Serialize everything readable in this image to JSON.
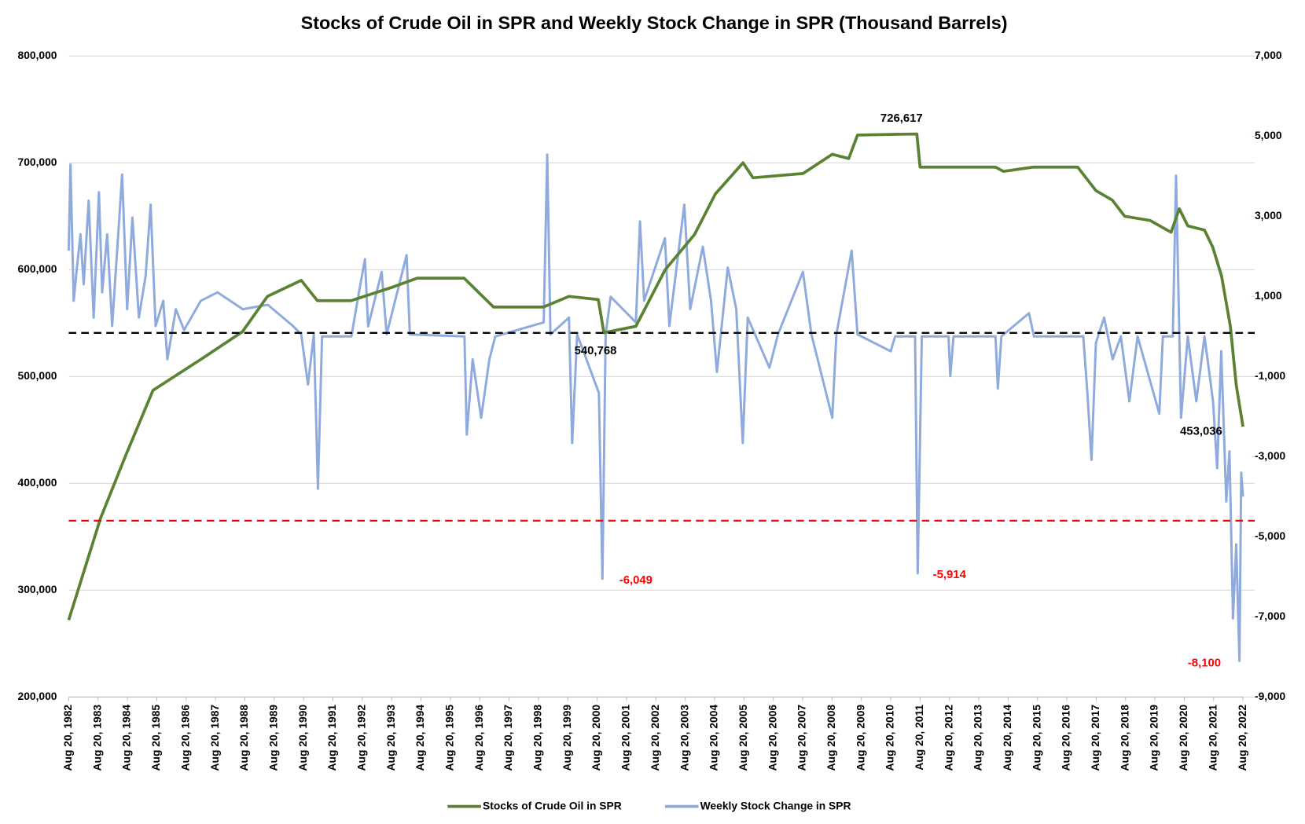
{
  "chart_data": {
    "type": "line",
    "title": "Stocks of Crude Oil in SPR and Weekly Stock Change in SPR (Thousand Barrels)",
    "xlim": [
      1982.63,
      2022.63
    ],
    "ylim": [
      200000,
      800000
    ],
    "y2lim": [
      -9000,
      7000
    ],
    "grid": true,
    "legend": "bottom",
    "yticks": [
      {
        "value": 200000,
        "label": "200,000"
      },
      {
        "value": 300000,
        "label": "300,000"
      },
      {
        "value": 400000,
        "label": "400,000"
      },
      {
        "value": 500000,
        "label": "500,000"
      },
      {
        "value": 600000,
        "label": "600,000"
      },
      {
        "value": 700000,
        "label": "700,000"
      },
      {
        "value": 800000,
        "label": "800,000"
      }
    ],
    "y2ticks": [
      {
        "value": -9000,
        "label": "-9,000"
      },
      {
        "value": -7000,
        "label": "-7,000"
      },
      {
        "value": -5000,
        "label": "-5,000"
      },
      {
        "value": -3000,
        "label": "-3,000"
      },
      {
        "value": -1000,
        "label": "-1,000"
      },
      {
        "value": 1000,
        "label": "1,000"
      },
      {
        "value": 3000,
        "label": "3,000"
      },
      {
        "value": 5000,
        "label": "5,000"
      },
      {
        "value": 7000,
        "label": "7,000"
      }
    ],
    "xticks": [
      {
        "value": 1982.63,
        "label": "Aug 20, 1982"
      },
      {
        "value": 1983.63,
        "label": "Aug 20, 1983"
      },
      {
        "value": 1984.63,
        "label": "Aug 20, 1984"
      },
      {
        "value": 1985.63,
        "label": "Aug 20, 1985"
      },
      {
        "value": 1986.63,
        "label": "Aug 20, 1986"
      },
      {
        "value": 1987.63,
        "label": "Aug 20, 1987"
      },
      {
        "value": 1988.63,
        "label": "Aug 20, 1988"
      },
      {
        "value": 1989.63,
        "label": "Aug 20, 1989"
      },
      {
        "value": 1990.63,
        "label": "Aug 20, 1990"
      },
      {
        "value": 1991.63,
        "label": "Aug 20, 1991"
      },
      {
        "value": 1992.63,
        "label": "Aug 20, 1992"
      },
      {
        "value": 1993.63,
        "label": "Aug 20, 1993"
      },
      {
        "value": 1994.63,
        "label": "Aug 20, 1994"
      },
      {
        "value": 1995.63,
        "label": "Aug 20, 1995"
      },
      {
        "value": 1996.63,
        "label": "Aug 20, 1996"
      },
      {
        "value": 1997.63,
        "label": "Aug 20, 1997"
      },
      {
        "value": 1998.63,
        "label": "Aug 20, 1998"
      },
      {
        "value": 1999.63,
        "label": "Aug 20, 1999"
      },
      {
        "value": 2000.63,
        "label": "Aug 20, 2000"
      },
      {
        "value": 2001.63,
        "label": "Aug 20, 2001"
      },
      {
        "value": 2002.63,
        "label": "Aug 20, 2002"
      },
      {
        "value": 2003.63,
        "label": "Aug 20, 2003"
      },
      {
        "value": 2004.63,
        "label": "Aug 20, 2004"
      },
      {
        "value": 2005.63,
        "label": "Aug 20, 2005"
      },
      {
        "value": 2006.63,
        "label": "Aug 20, 2006"
      },
      {
        "value": 2007.63,
        "label": "Aug 20, 2007"
      },
      {
        "value": 2008.63,
        "label": "Aug 20, 2008"
      },
      {
        "value": 2009.63,
        "label": "Aug 20, 2009"
      },
      {
        "value": 2010.63,
        "label": "Aug 20, 2010"
      },
      {
        "value": 2011.63,
        "label": "Aug 20, 2011"
      },
      {
        "value": 2012.63,
        "label": "Aug 20, 2012"
      },
      {
        "value": 2013.63,
        "label": "Aug 20, 2013"
      },
      {
        "value": 2014.63,
        "label": "Aug 20, 2014"
      },
      {
        "value": 2015.63,
        "label": "Aug 20, 2015"
      },
      {
        "value": 2016.63,
        "label": "Aug 20, 2016"
      },
      {
        "value": 2017.63,
        "label": "Aug 20, 2017"
      },
      {
        "value": 2018.63,
        "label": "Aug 20, 2018"
      },
      {
        "value": 2019.63,
        "label": "Aug 20, 2019"
      },
      {
        "value": 2020.63,
        "label": "Aug 20, 2020"
      },
      {
        "value": 2021.63,
        "label": "Aug 20, 2021"
      },
      {
        "value": 2022.63,
        "label": "Aug 20, 2022"
      }
    ],
    "series": [
      {
        "name": "Weekly Stock Change in SPR",
        "color": "#8faadc",
        "axis": "y2",
        "x": [
          1982.63,
          1982.69,
          1982.8,
          1982.91,
          1983.03,
          1983.14,
          1983.31,
          1983.48,
          1983.66,
          1983.77,
          1983.94,
          1984.11,
          1984.28,
          1984.45,
          1984.62,
          1984.8,
          1985.02,
          1985.25,
          1985.42,
          1985.59,
          1985.85,
          1985.99,
          1986.28,
          1986.56,
          1987.13,
          1987.7,
          1988.56,
          1989.41,
          1990.27,
          1990.55,
          1990.78,
          1990.98,
          1991.12,
          1991.26,
          1992.26,
          1992.49,
          1992.72,
          1992.83,
          1993.29,
          1993.46,
          1994.14,
          1994.25,
          1996.11,
          1996.19,
          1996.39,
          1996.68,
          1996.96,
          1997.16,
          1998.81,
          1998.93,
          1999.04,
          1999.67,
          1999.78,
          1999.95,
          2000.69,
          2000.81,
          2000.92,
          2001.09,
          2001.95,
          2002.09,
          2002.23,
          2002.94,
          2003.09,
          2003.6,
          2003.8,
          2004.23,
          2004.51,
          2004.71,
          2005.08,
          2005.37,
          2005.59,
          2005.76,
          2006.5,
          2006.79,
          2007.64,
          2007.93,
          2008.64,
          2008.78,
          2009.3,
          2009.5,
          2010.63,
          2010.78,
          2011.46,
          2011.55,
          2011.69,
          2012.6,
          2012.66,
          2012.77,
          2014.2,
          2014.28,
          2014.4,
          2015.34,
          2015.51,
          2017.19,
          2017.33,
          2017.47,
          2017.62,
          2017.9,
          2018.19,
          2018.47,
          2018.76,
          2019.04,
          2019.78,
          2019.9,
          2020.24,
          2020.35,
          2020.52,
          2020.75,
          2021.04,
          2021.32,
          2021.61,
          2021.75,
          2021.89,
          2022.06,
          2022.17,
          2022.29,
          2022.4,
          2022.51,
          2022.57,
          2022.63
        ],
        "values": [
          2140,
          4290,
          890,
          1720,
          2550,
          1300,
          3390,
          470,
          3600,
          1100,
          2550,
          260,
          2140,
          4040,
          680,
          2970,
          470,
          1510,
          3290,
          260,
          890,
          -570,
          680,
          160,
          890,
          1100,
          680,
          790,
          260,
          50,
          -1200,
          50,
          -3800,
          0,
          0,
          990,
          1930,
          250,
          1610,
          50,
          2030,
          50,
          0,
          -2450,
          -570,
          -2030,
          -570,
          0,
          350,
          4540,
          50,
          470,
          -2660,
          50,
          -1410,
          -6049,
          50,
          990,
          350,
          2870,
          890,
          2450,
          260,
          3290,
          680,
          2240,
          890,
          -890,
          1720,
          680,
          -2660,
          470,
          -780,
          50,
          1610,
          50,
          -2030,
          50,
          2140,
          50,
          -370,
          0,
          0,
          -5914,
          0,
          0,
          -990,
          0,
          0,
          -1300,
          0,
          580,
          0,
          0,
          -1410,
          -3080,
          -160,
          470,
          -570,
          0,
          -1620,
          0,
          -1930,
          0,
          0,
          4010,
          -2030,
          0,
          -1620,
          0,
          -1620,
          -3290,
          -370,
          -4120,
          -2870,
          -7040,
          -5190,
          -8100,
          -3400,
          -4000
        ]
      },
      {
        "name": "Stocks of Crude Oil in SPR",
        "color": "#5b8232",
        "axis": "y",
        "x": [
          1982.63,
          1983.71,
          1984.57,
          1985.5,
          1987.13,
          1988.55,
          1989.4,
          1990.55,
          1991.1,
          1992.25,
          1993.7,
          1994.5,
          1996.1,
          1997.1,
          1998.8,
          1999.67,
          2000.67,
          2000.86,
          2001.95,
          2002.95,
          2003.95,
          2004.66,
          2005.6,
          2005.94,
          2007.64,
          2008.64,
          2009.2,
          2009.5,
          2010.63,
          2011.52,
          2011.63,
          2014.2,
          2014.47,
          2015.48,
          2017.0,
          2017.62,
          2018.18,
          2018.6,
          2019.47,
          2020.18,
          2020.46,
          2020.75,
          2021.32,
          2021.6,
          2021.9,
          2022.2,
          2022.4,
          2022.63
        ],
        "values": [
          272000,
          367000,
          426000,
          487000,
          516000,
          542000,
          575000,
          590000,
          571000,
          571000,
          584000,
          592000,
          592000,
          565000,
          565000,
          575000,
          572000,
          541000,
          547000,
          600000,
          633000,
          671000,
          700000,
          686000,
          690000,
          708000,
          704000,
          726000,
          726617,
          727000,
          696000,
          696000,
          692000,
          696000,
          696000,
          674000,
          665000,
          650000,
          646000,
          635000,
          657000,
          641000,
          637000,
          621000,
          594000,
          547000,
          492000,
          453036
        ]
      }
    ],
    "reference_lines": [
      {
        "value": 540768,
        "color": "#000000",
        "axis": "y"
      },
      {
        "value": 365000,
        "color": "#ff0000",
        "axis": "y"
      }
    ],
    "annotations": [
      {
        "x": 2010.63,
        "value": 726617,
        "label": "726,617",
        "axis": "y",
        "color": "#000000"
      },
      {
        "x": 2000.86,
        "value": 540768,
        "label": "540,768",
        "axis": "y",
        "color": "#000000"
      },
      {
        "x": 2022.63,
        "value": 453036,
        "label": "453,036",
        "axis": "y",
        "color": "#000000"
      },
      {
        "x": 2000.81,
        "value": -6049,
        "label": "-6,049",
        "axis": "y2",
        "color": "#ff0000"
      },
      {
        "x": 2011.55,
        "value": -5914,
        "label": "-5,914",
        "axis": "y2",
        "color": "#ff0000"
      },
      {
        "x": 2022.51,
        "value": -8100,
        "label": "-8,100",
        "axis": "y2",
        "color": "#ff0000"
      }
    ]
  }
}
